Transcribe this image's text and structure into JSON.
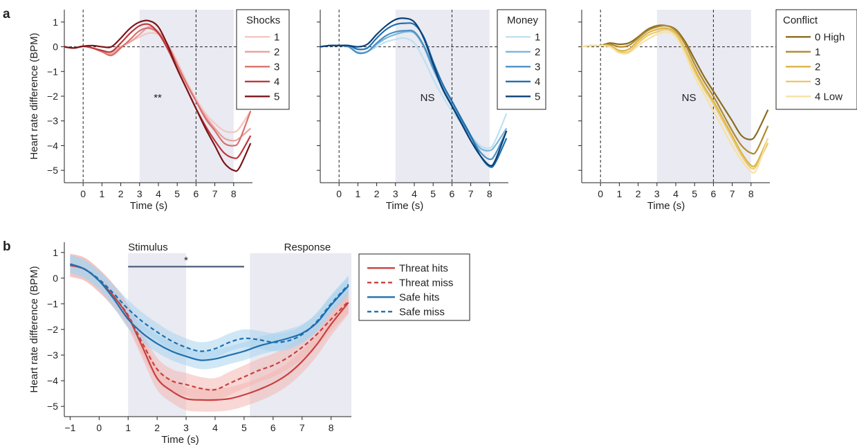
{
  "panel_labels": [
    "a",
    "b"
  ],
  "chart_data": [
    {
      "type": "line",
      "panel": "a",
      "xlabel": "Time (s)",
      "ylabel": "Heart rate difference (BPM)",
      "xlim": [
        -1,
        9
      ],
      "ylim": [
        -5.5,
        1.5
      ],
      "xticks": [
        0,
        1,
        2,
        3,
        4,
        5,
        6,
        7,
        8
      ],
      "yticks": [
        1,
        0,
        -1,
        -2,
        -3,
        -4,
        -5
      ],
      "ytick_labels": [
        "1",
        "0",
        "−1",
        "−2",
        "−3",
        "−4",
        "−5"
      ],
      "shaded_region": [
        3,
        8
      ],
      "vlines": [
        0,
        6
      ],
      "hline": 0,
      "annotation": "**",
      "legend_title": "Shocks",
      "legend_position": "top-right",
      "x": [
        -1,
        -0.5,
        0,
        0.5,
        1,
        1.5,
        2,
        2.5,
        3,
        3.5,
        4,
        4.5,
        5,
        5.5,
        6,
        6.5,
        7,
        7.5,
        8,
        8.3,
        8.9
      ],
      "series": [
        {
          "name": "1",
          "color": "#f4c5c0",
          "values": [
            0,
            -0.05,
            0.02,
            -0.05,
            -0.2,
            -0.25,
            0,
            0.2,
            0.4,
            0.55,
            0.5,
            0.1,
            -0.6,
            -1.4,
            -2.1,
            -2.7,
            -3.1,
            -3.4,
            -3.45,
            -3.3,
            -2.6
          ]
        },
        {
          "name": "2",
          "color": "#e8a19c",
          "values": [
            0,
            -0.05,
            0.02,
            -0.05,
            -0.2,
            -0.3,
            0,
            0.2,
            0.5,
            0.8,
            0.6,
            0.1,
            -0.7,
            -1.5,
            -2.2,
            -2.8,
            -3.3,
            -3.7,
            -3.8,
            -3.7,
            -3.3
          ]
        },
        {
          "name": "3",
          "color": "#d9706c",
          "values": [
            0,
            -0.05,
            0.02,
            -0.05,
            -0.2,
            -0.35,
            -0.05,
            0.3,
            0.65,
            0.75,
            0.55,
            0.05,
            -0.75,
            -1.5,
            -2.2,
            -2.9,
            -3.4,
            -3.9,
            -4.0,
            -3.8,
            -2.6
          ]
        },
        {
          "name": "4",
          "color": "#c0363a",
          "values": [
            0,
            -0.05,
            0.02,
            -0.05,
            -0.15,
            -0.2,
            0.15,
            0.55,
            0.85,
            0.9,
            0.55,
            -0.1,
            -0.9,
            -1.7,
            -2.5,
            -3.2,
            -3.8,
            -4.3,
            -4.5,
            -4.4,
            -3.6
          ]
        },
        {
          "name": "5",
          "color": "#7a1419",
          "values": [
            0,
            -0.05,
            0.02,
            0.05,
            0,
            0,
            0.35,
            0.75,
            1.0,
            1.05,
            0.8,
            0.05,
            -0.9,
            -1.7,
            -2.5,
            -3.3,
            -4.0,
            -4.7,
            -5.0,
            -4.9,
            -3.9
          ]
        }
      ]
    },
    {
      "type": "line",
      "panel": "a",
      "xlabel": "Time (s)",
      "xlim": [
        -1,
        9
      ],
      "ylim": [
        -5.5,
        1.5
      ],
      "xticks": [
        0,
        1,
        2,
        3,
        4,
        5,
        6,
        7,
        8
      ],
      "yticks": [
        1,
        0,
        -1,
        -2,
        -3,
        -4,
        -5
      ],
      "shaded_region": [
        3,
        8
      ],
      "vlines": [
        0,
        6
      ],
      "hline": 0,
      "annotation": "NS",
      "legend_title": "Money",
      "legend_position": "top-right",
      "x": [
        -1,
        -0.5,
        0,
        0.5,
        1,
        1.5,
        2,
        2.5,
        3,
        3.5,
        4,
        4.5,
        5,
        5.5,
        6,
        6.5,
        7,
        7.5,
        8,
        8.3,
        8.9
      ],
      "series": [
        {
          "name": "1",
          "color": "#bfe0f0",
          "values": [
            0,
            0.05,
            0.05,
            0,
            -0.2,
            -0.2,
            0,
            0.2,
            0.3,
            0.35,
            0.15,
            -0.5,
            -1.3,
            -2.0,
            -2.6,
            -3.1,
            -3.6,
            -4.0,
            -4.1,
            -3.8,
            -2.7
          ]
        },
        {
          "name": "2",
          "color": "#7bb6da",
          "values": [
            0,
            0.05,
            0.05,
            0,
            -0.25,
            -0.2,
            0.1,
            0.35,
            0.5,
            0.6,
            0.55,
            0,
            -0.9,
            -1.7,
            -2.4,
            -3.0,
            -3.6,
            -4.1,
            -4.2,
            -4.0,
            -3.3
          ]
        },
        {
          "name": "3",
          "color": "#4a90c6",
          "values": [
            0,
            0.05,
            0.05,
            0,
            -0.25,
            -0.2,
            0.15,
            0.45,
            0.6,
            0.65,
            0.6,
            0.05,
            -0.85,
            -1.65,
            -2.35,
            -3.0,
            -3.65,
            -4.25,
            -4.55,
            -4.35,
            -3.4
          ]
        },
        {
          "name": "4",
          "color": "#1f6fad",
          "values": [
            0,
            0.05,
            0.05,
            0.05,
            -0.1,
            -0.05,
            0.35,
            0.7,
            0.9,
            0.95,
            0.9,
            0.4,
            -0.6,
            -1.5,
            -2.2,
            -2.9,
            -3.6,
            -4.4,
            -4.85,
            -4.7,
            -3.7
          ]
        },
        {
          "name": "5",
          "color": "#0b3f75",
          "values": [
            0,
            0.05,
            0.05,
            0.05,
            0,
            0.1,
            0.5,
            0.85,
            1.1,
            1.15,
            1.0,
            0.35,
            -0.7,
            -1.7,
            -2.4,
            -3.1,
            -3.8,
            -4.4,
            -4.8,
            -4.6,
            -3.4
          ]
        }
      ]
    },
    {
      "type": "line",
      "panel": "a",
      "xlabel": "Time (s)",
      "xlim": [
        -1,
        9
      ],
      "ylim": [
        -5.5,
        1.5
      ],
      "xticks": [
        0,
        1,
        2,
        3,
        4,
        5,
        6,
        7,
        8
      ],
      "yticks": [
        1,
        0,
        -1,
        -2,
        -3,
        -4,
        -5
      ],
      "shaded_region": [
        3,
        8
      ],
      "vlines": [
        0,
        6
      ],
      "hline": 0,
      "annotation": "NS",
      "legend_title": "Conflict",
      "legend_position": "top-right",
      "x": [
        -1,
        -0.5,
        0,
        0.5,
        1,
        1.5,
        2,
        2.5,
        3,
        3.5,
        4,
        4.5,
        5,
        5.5,
        6,
        6.5,
        7,
        7.5,
        8,
        8.3,
        8.9
      ],
      "series": [
        {
          "name": "0  High",
          "color": "#8a6b1f",
          "values": [
            0,
            0.05,
            0.05,
            0.15,
            0.1,
            0.15,
            0.4,
            0.7,
            0.85,
            0.85,
            0.7,
            0.2,
            -0.5,
            -1.2,
            -1.8,
            -2.4,
            -3.0,
            -3.6,
            -3.75,
            -3.5,
            -2.55
          ]
        },
        {
          "name": "1",
          "color": "#b08a2e",
          "values": [
            0,
            0.05,
            0.05,
            0.1,
            0,
            0.05,
            0.35,
            0.65,
            0.8,
            0.85,
            0.65,
            0.1,
            -0.7,
            -1.4,
            -2.0,
            -2.7,
            -3.4,
            -4.0,
            -4.3,
            -4.2,
            -3.2
          ]
        },
        {
          "name": "2",
          "color": "#dbb342",
          "values": [
            0,
            0.05,
            0.05,
            0.05,
            -0.15,
            -0.1,
            0.25,
            0.55,
            0.7,
            0.75,
            0.55,
            -0.1,
            -0.9,
            -1.6,
            -2.2,
            -2.9,
            -3.6,
            -4.3,
            -4.8,
            -4.7,
            -3.7
          ]
        },
        {
          "name": "3",
          "color": "#ecc96b",
          "values": [
            0,
            0.05,
            0.05,
            0,
            -0.2,
            -0.2,
            0.15,
            0.45,
            0.6,
            0.7,
            0.5,
            -0.15,
            -1.0,
            -1.7,
            -2.3,
            -3.0,
            -3.7,
            -4.4,
            -4.9,
            -4.8,
            -3.9
          ]
        },
        {
          "name": "4  Low",
          "color": "#f6e2a3",
          "values": [
            0,
            0.05,
            0.05,
            0,
            -0.25,
            -0.25,
            0.05,
            0.3,
            0.5,
            0.6,
            0.4,
            -0.3,
            -1.2,
            -1.9,
            -2.6,
            -3.3,
            -4.0,
            -4.6,
            -5.05,
            -4.95,
            -3.7
          ]
        }
      ]
    },
    {
      "type": "line",
      "panel": "b",
      "xlabel": "Time (s)",
      "ylabel": "Heart rate difference (BPM)",
      "xlim": [
        -1.2,
        8.7
      ],
      "ylim": [
        -5.4,
        1.4
      ],
      "xticks": [
        -1,
        0,
        1,
        2,
        3,
        4,
        5,
        6,
        7,
        8
      ],
      "xtick_labels": [
        "−1",
        "0",
        "1",
        "2",
        "3",
        "4",
        "5",
        "6",
        "7",
        "8"
      ],
      "yticks": [
        1,
        0,
        -1,
        -2,
        -3,
        -4,
        -5
      ],
      "ytick_labels": [
        "1",
        "0",
        "−1",
        "−2",
        "−3",
        "−4",
        "−5"
      ],
      "shaded_regions": [
        {
          "label": "Stimulus",
          "range": [
            1,
            3
          ]
        },
        {
          "label": "Response",
          "range": [
            5.2,
            8.7
          ]
        }
      ],
      "significance_bar": {
        "range": [
          1,
          5
        ],
        "y": 0.45,
        "label": "*"
      },
      "legend_position": "right",
      "x": [
        -1,
        -0.5,
        0,
        0.5,
        1,
        1.5,
        2,
        2.5,
        3,
        3.5,
        4,
        4.5,
        5,
        5.5,
        6,
        6.5,
        7,
        7.5,
        8,
        8.6
      ],
      "series": [
        {
          "name": "Threat hits",
          "color": "#c8403f",
          "dash": "solid",
          "band": 0.45,
          "values": [
            0.5,
            0.35,
            -0.1,
            -0.7,
            -1.5,
            -2.7,
            -3.9,
            -4.4,
            -4.7,
            -4.75,
            -4.75,
            -4.7,
            -4.55,
            -4.35,
            -4.1,
            -3.75,
            -3.25,
            -2.6,
            -1.8,
            -0.95
          ]
        },
        {
          "name": "Threat miss",
          "color": "#c8403f",
          "dash": "dashed",
          "band": 0.45,
          "values": [
            0.5,
            0.35,
            -0.1,
            -0.7,
            -1.45,
            -2.55,
            -3.55,
            -4.0,
            -4.15,
            -4.3,
            -4.35,
            -4.1,
            -3.85,
            -3.6,
            -3.4,
            -3.1,
            -2.7,
            -2.2,
            -1.6,
            -0.9
          ]
        },
        {
          "name": "Safe hits",
          "color": "#1f6fad",
          "dash": "solid",
          "band": 0.35,
          "values": [
            0.55,
            0.35,
            -0.1,
            -0.8,
            -1.6,
            -2.15,
            -2.55,
            -2.85,
            -3.05,
            -3.2,
            -3.15,
            -3.0,
            -2.85,
            -2.65,
            -2.5,
            -2.35,
            -2.15,
            -1.75,
            -1.05,
            -0.3
          ]
        },
        {
          "name": "Safe miss",
          "color": "#1f6fad",
          "dash": "dashed",
          "band": 0.35,
          "values": [
            0.55,
            0.35,
            -0.05,
            -0.6,
            -1.2,
            -1.7,
            -2.1,
            -2.45,
            -2.7,
            -2.85,
            -2.75,
            -2.5,
            -2.35,
            -2.4,
            -2.5,
            -2.45,
            -2.2,
            -1.7,
            -1.0,
            -0.25
          ]
        }
      ]
    }
  ]
}
